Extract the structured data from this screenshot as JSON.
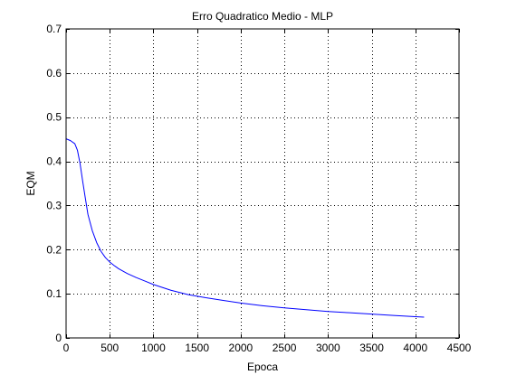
{
  "chart_data": {
    "type": "line",
    "title": "Erro Quadratico Medio - MLP",
    "xlabel": "Epoca",
    "ylabel": "EQM",
    "xlim": [
      0,
      4500
    ],
    "ylim": [
      0,
      0.7
    ],
    "xticks": [
      0,
      500,
      1000,
      1500,
      2000,
      2500,
      3000,
      3500,
      4000,
      4500
    ],
    "yticks": [
      0,
      0.1,
      0.2,
      0.3,
      0.4,
      0.5,
      0.6,
      0.7
    ],
    "xtick_labels": [
      "0",
      "500",
      "1000",
      "1500",
      "2000",
      "2500",
      "3000",
      "3500",
      "4000",
      "4500"
    ],
    "ytick_labels": [
      "0",
      "0.1",
      "0.2",
      "0.3",
      "0.4",
      "0.5",
      "0.6",
      "0.7"
    ],
    "grid": true,
    "grid_style": "dotted",
    "series": [
      {
        "color": "#0000ff",
        "x": [
          0,
          50,
          100,
          130,
          160,
          190,
          220,
          250,
          300,
          350,
          400,
          450,
          500,
          550,
          600,
          700,
          800,
          900,
          1000,
          1200,
          1400,
          1600,
          1800,
          2000,
          2250,
          2500,
          2750,
          3000,
          3250,
          3500,
          3750,
          4000,
          4100
        ],
        "y": [
          0.451,
          0.447,
          0.44,
          0.425,
          0.395,
          0.355,
          0.317,
          0.28,
          0.243,
          0.216,
          0.196,
          0.182,
          0.172,
          0.164,
          0.157,
          0.146,
          0.137,
          0.129,
          0.121,
          0.108,
          0.098,
          0.091,
          0.085,
          0.079,
          0.073,
          0.068,
          0.064,
          0.06,
          0.057,
          0.054,
          0.051,
          0.048,
          0.047
        ]
      }
    ]
  }
}
